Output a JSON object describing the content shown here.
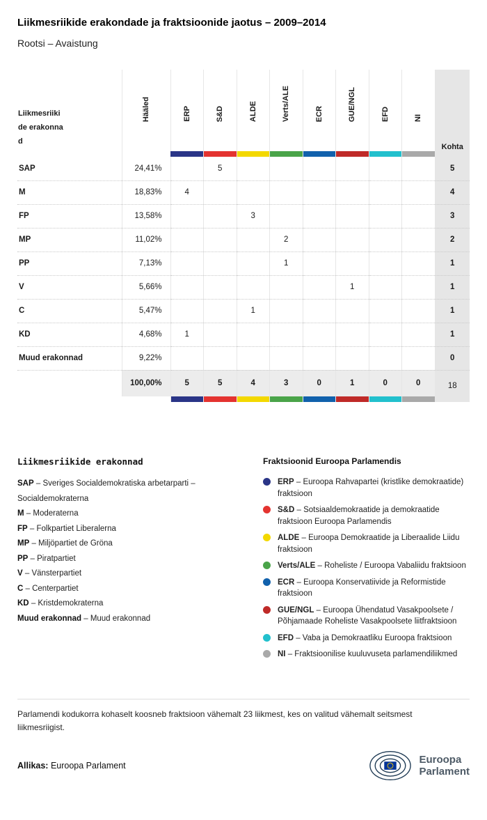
{
  "title": "Liikmesriikide erakondade ja fraktsioonide jaotus – 2009–2014",
  "subtitle": "Rootsi – Avaistung",
  "chart_data": {
    "type": "table",
    "columns": {
      "party": "Liikmesriikide erakonnad",
      "votes": "Hääled",
      "seats": "Kohta"
    },
    "factions": [
      {
        "code": "ERP",
        "color": "#2a3587"
      },
      {
        "code": "S&D",
        "color": "#e43330"
      },
      {
        "code": "ALDE",
        "color": "#f3d800"
      },
      {
        "code": "Verts/ALE",
        "color": "#4aa449"
      },
      {
        "code": "ECR",
        "color": "#1161ac"
      },
      {
        "code": "GUE/NGL",
        "color": "#bf2a28"
      },
      {
        "code": "EFD",
        "color": "#22c0cd"
      },
      {
        "code": "NI",
        "color": "#a9a9a9"
      }
    ],
    "rows": [
      {
        "party": "SAP",
        "votes": "24,41%",
        "seats": [
          "",
          "5",
          "",
          "",
          "",
          "",
          "",
          ""
        ],
        "total": "5"
      },
      {
        "party": "M",
        "votes": "18,83%",
        "seats": [
          "4",
          "",
          "",
          "",
          "",
          "",
          "",
          ""
        ],
        "total": "4"
      },
      {
        "party": "FP",
        "votes": "13,58%",
        "seats": [
          "",
          "",
          "3",
          "",
          "",
          "",
          "",
          ""
        ],
        "total": "3"
      },
      {
        "party": "MP",
        "votes": "11,02%",
        "seats": [
          "",
          "",
          "",
          "2",
          "",
          "",
          "",
          ""
        ],
        "total": "2"
      },
      {
        "party": "PP",
        "votes": "7,13%",
        "seats": [
          "",
          "",
          "",
          "1",
          "",
          "",
          "",
          ""
        ],
        "total": "1"
      },
      {
        "party": "V",
        "votes": "5,66%",
        "seats": [
          "",
          "",
          "",
          "",
          "",
          "1",
          "",
          ""
        ],
        "total": "1"
      },
      {
        "party": "C",
        "votes": "5,47%",
        "seats": [
          "",
          "",
          "1",
          "",
          "",
          "",
          "",
          ""
        ],
        "total": "1"
      },
      {
        "party": "KD",
        "votes": "4,68%",
        "seats": [
          "1",
          "",
          "",
          "",
          "",
          "",
          "",
          ""
        ],
        "total": "1"
      },
      {
        "party": "Muud erakonnad",
        "votes": "9,22%",
        "seats": [
          "",
          "",
          "",
          "",
          "",
          "",
          "",
          ""
        ],
        "total": "0"
      }
    ],
    "total_row": {
      "votes": "100,00%",
      "seats": [
        "5",
        "5",
        "4",
        "3",
        "0",
        "1",
        "0",
        "0"
      ],
      "total": "18"
    }
  },
  "legend_parties": {
    "heading": "Liikmesriikide erakonnad",
    "separator": "–",
    "items": [
      {
        "code": "SAP",
        "name": "Sveriges Socialdemokratiska arbetarparti – Socialdemokraterna"
      },
      {
        "code": "M",
        "name": "Moderaterna"
      },
      {
        "code": "FP",
        "name": "Folkpartiet Liberalerna"
      },
      {
        "code": "MP",
        "name": "Miljöpartiet de Gröna"
      },
      {
        "code": "PP",
        "name": "Piratpartiet"
      },
      {
        "code": "V",
        "name": "Vänsterpartiet"
      },
      {
        "code": "C",
        "name": "Centerpartiet"
      },
      {
        "code": "KD",
        "name": "Kristdemokraterna"
      },
      {
        "code": "Muud erakonnad",
        "name": "Muud erakonnad"
      }
    ]
  },
  "legend_factions": {
    "heading": "Fraktsioonid Euroopa Parlamendis",
    "separator": "–",
    "items": [
      {
        "code": "ERP",
        "name": "Euroopa Rahvapartei (kristlike demokraatide) fraktsioon",
        "color": "#2a3587"
      },
      {
        "code": "S&D",
        "name": "Sotsiaaldemokraatide ja demokraatide fraktsioon Euroopa Parlamendis",
        "color": "#e43330"
      },
      {
        "code": "ALDE",
        "name": "Euroopa Demokraatide ja Liberaalide Liidu fraktsioon",
        "color": "#f3d800"
      },
      {
        "code": "Verts/ALE",
        "name": "Roheliste / Euroopa Vabaliidu fraktsioon",
        "color": "#4aa449"
      },
      {
        "code": "ECR",
        "name": "Euroopa Konservatiivide ja Reformistide fraktsioon",
        "color": "#1161ac"
      },
      {
        "code": "GUE/NGL",
        "name": "Euroopa Ühendatud Vasakpoolsete / Põhjamaade Roheliste Vasakpoolsete liitfraktsioon",
        "color": "#bf2a28"
      },
      {
        "code": "EFD",
        "name": "Vaba ja Demokraatliku Euroopa fraktsioon",
        "color": "#22c0cd"
      },
      {
        "code": "NI",
        "name": "Fraktsioonilise kuuluvuseta parlamendiliikmed",
        "color": "#a9a9a9"
      }
    ]
  },
  "footnote": "Parlamendi kodukorra kohaselt koosneb fraktsioon vähemalt 23 liikmest, kes on valitud vähemalt seitsmest liikmesriigist.",
  "source": {
    "label": "Allikas:",
    "value": "Euroopa Parlament"
  },
  "logo": {
    "line1": "Euroopa",
    "line2": "Parlament"
  }
}
